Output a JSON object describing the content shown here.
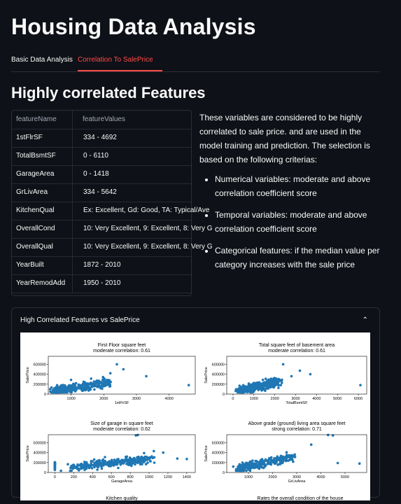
{
  "page_title": "Housing Data Analysis",
  "tabs": [
    {
      "label": "Basic Data Analysis",
      "active": false
    },
    {
      "label": "Correlation To SalePrice",
      "active": true
    }
  ],
  "section_title": "Highly correlated Features",
  "table": {
    "headers": [
      "featureName",
      "featureValues"
    ],
    "rows": [
      [
        "1stFlrSF",
        "334 - 4692"
      ],
      [
        "TotalBsmtSF",
        "0 - 6110"
      ],
      [
        "GarageArea",
        "0 - 1418"
      ],
      [
        "GrLivArea",
        "334 - 5642"
      ],
      [
        "KitchenQual",
        "Ex: Excellent, Gd: Good, TA: Typical/Ave"
      ],
      [
        "OverallCond",
        "10: Very Excellent, 9: Excellent, 8: Very G"
      ],
      [
        "OverallQual",
        "10: Very Excellent, 9: Excellent, 8: Very G"
      ],
      [
        "YearBuilt",
        "1872 - 2010"
      ],
      [
        "YearRemodAdd",
        "1950 - 2010"
      ]
    ]
  },
  "description": {
    "intro": "These variables are considered to be highly correlated to sale price. and are used in the model training and prediction. The selection is based on the following criterias:",
    "bullets": [
      "Numerical variables: moderate and above correlation coefficient score",
      "Temporal variables: moderate and above correlation coefficient score",
      "Categorical features: if the median value per category increases with the sale price"
    ]
  },
  "expander": {
    "title": "High Correlated Features vs SalePrice",
    "icon": "chevron-up-icon"
  },
  "chart_data": [
    {
      "type": "scatter",
      "title": "First Floor square feet",
      "subtitle": "moderate correlation: 0.61",
      "xlabel": "1stFlrSF",
      "ylabel": "SalePrice",
      "xticks": [
        1000,
        2000,
        3000,
        4000
      ],
      "yticks": [
        0,
        200000,
        400000,
        600000
      ],
      "xlim": [
        300,
        4800
      ],
      "ylim": [
        0,
        760000
      ],
      "color": "#1f77b4"
    },
    {
      "type": "scatter",
      "title": "Total square feet of basement area",
      "subtitle": "moderate correlation: 0.61",
      "xlabel": "TotalBsmtSF",
      "ylabel": "SalePrice",
      "xticks": [
        0,
        1000,
        2000,
        3000,
        4000,
        5000,
        6000
      ],
      "yticks": [
        0,
        200000,
        400000,
        600000
      ],
      "xlim": [
        -300,
        6400
      ],
      "ylim": [
        0,
        760000
      ],
      "color": "#1f77b4"
    },
    {
      "type": "scatter",
      "title": "Size of garage in square feet",
      "subtitle": "moderate correlation: 0.62",
      "xlabel": "GarageArea",
      "ylabel": "SalePrice",
      "xticks": [
        0,
        200,
        400,
        600,
        800,
        1000,
        1200,
        1400
      ],
      "yticks": [
        0,
        200000,
        400000,
        600000
      ],
      "xlim": [
        -70,
        1490
      ],
      "ylim": [
        0,
        760000
      ],
      "color": "#1f77b4"
    },
    {
      "type": "scatter",
      "title": "Above grade (ground) living area square feet",
      "subtitle": "strong correlation: 0.71",
      "xlabel": "GrLivArea",
      "ylabel": "SalePrice",
      "xticks": [
        1000,
        2000,
        3000,
        4000,
        5000
      ],
      "yticks": [
        0,
        200000,
        400000,
        600000
      ],
      "xlim": [
        100,
        5900
      ],
      "ylim": [
        0,
        760000
      ],
      "color": "#1f77b4"
    },
    {
      "type": "scatter",
      "title": "Kitchen quality",
      "subtitle": ""
    },
    {
      "type": "scatter",
      "title": "Rates the overall condition of the house",
      "subtitle": ""
    }
  ]
}
